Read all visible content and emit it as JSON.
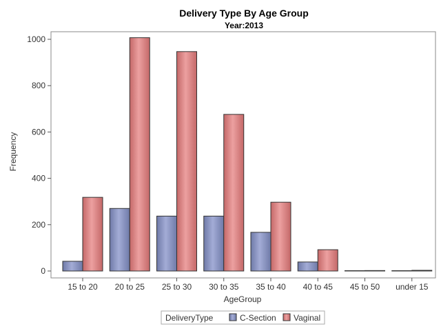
{
  "chart_data": {
    "type": "bar",
    "title": "Delivery Type By Age Group",
    "subtitle": "Year:2013",
    "xlabel": "AgeGroup",
    "ylabel": "Frequency",
    "categories": [
      "15 to 20",
      "20 to 25",
      "25 to 30",
      "30 to 35",
      "35 to 40",
      "40 to 45",
      "45 to 50",
      "under 15"
    ],
    "ylim": [
      0,
      1000
    ],
    "yticks": [
      0,
      200,
      400,
      600,
      800,
      1000
    ],
    "grid": false,
    "legend": {
      "title": "DeliveryType",
      "placement": "bottom"
    },
    "series": [
      {
        "name": "C-Section",
        "color": "#8b96c3",
        "values": [
          42,
          270,
          237,
          237,
          167,
          39,
          1,
          0
        ]
      },
      {
        "name": "Vaginal",
        "color": "#d98080",
        "values": [
          318,
          1007,
          947,
          676,
          297,
          92,
          2,
          3
        ]
      }
    ]
  }
}
